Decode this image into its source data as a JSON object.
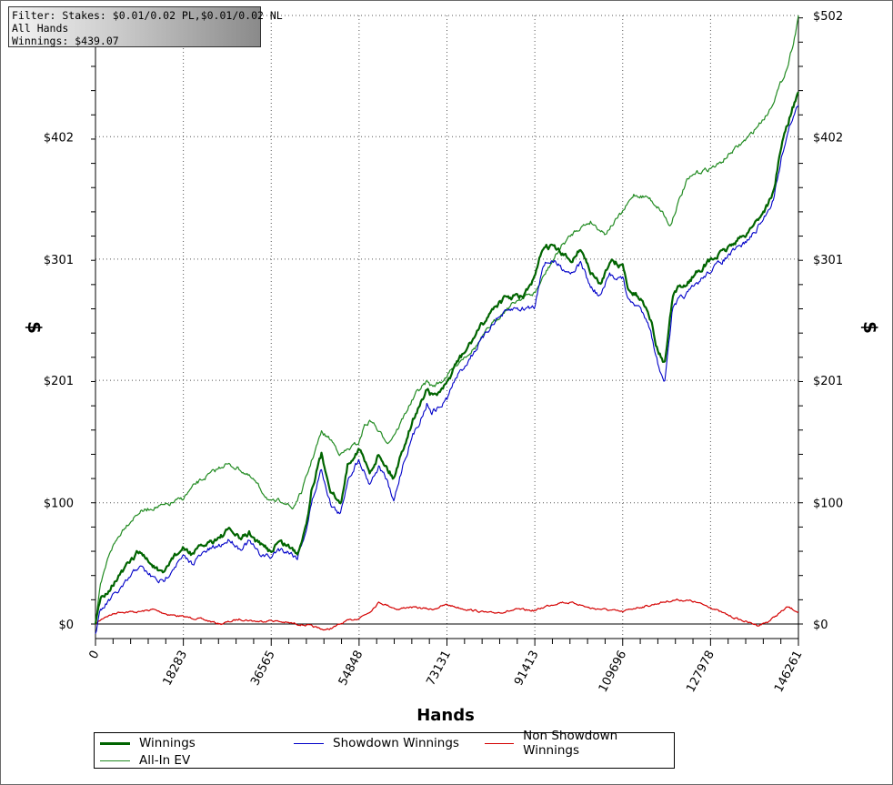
{
  "filter_box": {
    "line1": "Filter: Stakes: $0.01/0.02 PL,$0.01/0.02 NL",
    "line2": "All Hands",
    "line3": "Winnings: $439.07"
  },
  "colors": {
    "winnings": "#006400",
    "all_in_ev": "#228b22",
    "showdown": "#0000c8",
    "non_showdown": "#d40000",
    "grid": "#555555"
  },
  "chart_data": {
    "type": "line",
    "xlabel": "Hands",
    "ylabel": "$",
    "xlim": [
      0,
      146261
    ],
    "ylim": [
      -12,
      502
    ],
    "x_ticks": [
      "0",
      "18283",
      "36565",
      "54848",
      "73131",
      "91413",
      "109696",
      "127978",
      "146261"
    ],
    "x_tick_values": [
      0,
      18283,
      36565,
      54848,
      73131,
      91413,
      109696,
      127978,
      146261
    ],
    "y_ticks": [
      "$0",
      "$100",
      "$201",
      "$301",
      "$402",
      "$502"
    ],
    "y_tick_values": [
      0,
      100,
      201,
      301,
      402,
      502
    ],
    "grid": true,
    "legend_position": "bottom",
    "series": [
      {
        "name": "Winnings",
        "x": [
          0,
          1000,
          3000,
          6000,
          9000,
          12000,
          14000,
          16000,
          18283,
          20000,
          23000,
          26000,
          28000,
          30000,
          32000,
          34000,
          36565,
          38000,
          40000,
          42000,
          44000,
          45000,
          47000,
          49000,
          51000,
          52500,
          54848,
          57000,
          59000,
          60500,
          62000,
          64000,
          66000,
          68000,
          69000,
          70000,
          72000,
          73131,
          75000,
          77000,
          79000,
          81000,
          83000,
          85000,
          87000,
          89000,
          91413,
          93000,
          95000,
          97000,
          99000,
          101000,
          103000,
          105000,
          107000,
          109696,
          111000,
          113000,
          115000,
          117000,
          118500,
          120000,
          121500,
          123000,
          125000,
          127978,
          130000,
          133000,
          135000,
          137000,
          139000,
          141000,
          143000,
          145000,
          146261
        ],
        "values": [
          0,
          20,
          30,
          45,
          60,
          48,
          40,
          55,
          62,
          58,
          66,
          72,
          78,
          70,
          75,
          66,
          60,
          68,
          65,
          58,
          85,
          112,
          140,
          110,
          98,
          132,
          145,
          125,
          140,
          130,
          120,
          145,
          168,
          185,
          195,
          188,
          192,
          198,
          215,
          225,
          238,
          250,
          262,
          268,
          270,
          270,
          285,
          310,
          312,
          305,
          300,
          310,
          290,
          280,
          300,
          295,
          275,
          270,
          260,
          225,
          215,
          268,
          278,
          280,
          290,
          300,
          305,
          315,
          320,
          330,
          340,
          355,
          400,
          425,
          439
        ]
      },
      {
        "name": "All-In EV",
        "x": [
          0,
          1000,
          3000,
          6000,
          9000,
          12000,
          15000,
          18283,
          21000,
          24000,
          27000,
          30000,
          33000,
          36565,
          39000,
          41000,
          43000,
          45000,
          47000,
          49000,
          51000,
          53000,
          54848,
          56000,
          57500,
          59000,
          61000,
          63000,
          65000,
          67000,
          69000,
          70000,
          72000,
          73131,
          76000,
          79000,
          82000,
          85000,
          88000,
          91413,
          94000,
          97000,
          100000,
          103000,
          106000,
          109696,
          112000,
          115000,
          118000,
          119500,
          121000,
          123000,
          125000,
          127978,
          130000,
          132000,
          134000,
          136000,
          138000,
          140000,
          142000,
          144000,
          145500,
          146261
        ],
        "values": [
          0,
          30,
          60,
          80,
          92,
          96,
          98,
          104,
          116,
          124,
          132,
          128,
          118,
          100,
          102,
          95,
          110,
          135,
          158,
          152,
          140,
          145,
          150,
          164,
          168,
          158,
          150,
          162,
          178,
          192,
          200,
          196,
          200,
          205,
          218,
          228,
          245,
          258,
          268,
          273,
          292,
          312,
          325,
          332,
          322,
          340,
          354,
          352,
          340,
          328,
          345,
          365,
          372,
          376,
          380,
          388,
          395,
          402,
          412,
          422,
          440,
          460,
          485,
          502
        ]
      },
      {
        "name": "Showdown Winnings",
        "x": [
          0,
          1000,
          3000,
          6000,
          9000,
          12000,
          14000,
          16000,
          18283,
          20000,
          23000,
          26000,
          28000,
          30000,
          32000,
          34000,
          36565,
          38000,
          40000,
          42000,
          44000,
          45000,
          47000,
          49000,
          51000,
          52500,
          54848,
          57000,
          59000,
          60500,
          62000,
          64000,
          66000,
          68000,
          69000,
          70000,
          72000,
          73131,
          75000,
          77000,
          79000,
          81000,
          83000,
          85000,
          87000,
          89000,
          91413,
          93000,
          95000,
          97000,
          99000,
          101000,
          103000,
          105000,
          107000,
          109696,
          111000,
          113000,
          115000,
          117000,
          118500,
          120000,
          121500,
          123000,
          125000,
          127978,
          130000,
          133000,
          135000,
          137000,
          139000,
          141000,
          143000,
          145000,
          146261
        ],
        "values": [
          -8,
          10,
          20,
          32,
          48,
          38,
          34,
          46,
          55,
          50,
          60,
          65,
          70,
          62,
          68,
          58,
          55,
          62,
          60,
          55,
          80,
          100,
          128,
          98,
          90,
          120,
          136,
          116,
          130,
          120,
          100,
          132,
          155,
          172,
          182,
          175,
          180,
          186,
          203,
          214,
          226,
          238,
          250,
          256,
          260,
          260,
          262,
          296,
          300,
          294,
          290,
          298,
          278,
          270,
          288,
          285,
          266,
          262,
          250,
          215,
          200,
          258,
          268,
          272,
          280,
          292,
          298,
          308,
          314,
          322,
          334,
          350,
          390,
          418,
          428
        ]
      },
      {
        "name": "Non Showdown Winnings",
        "x": [
          0,
          2000,
          5000,
          9000,
          12000,
          15000,
          18283,
          22000,
          26000,
          30000,
          34000,
          36565,
          40000,
          44000,
          46000,
          48000,
          50000,
          52000,
          54848,
          57000,
          59000,
          61000,
          63000,
          65000,
          68000,
          70000,
          73131,
          76000,
          79000,
          82000,
          85000,
          88000,
          91413,
          94000,
          97000,
          100000,
          103000,
          106000,
          109696,
          112000,
          115000,
          118000,
          121000,
          124000,
          127978,
          130000,
          133000,
          136000,
          138000,
          140000,
          142000,
          144000,
          146261
        ],
        "values": [
          0,
          6,
          10,
          10,
          12,
          8,
          6,
          4,
          0,
          4,
          2,
          3,
          1,
          -1,
          -3,
          -5,
          -2,
          2,
          5,
          10,
          18,
          15,
          12,
          14,
          13,
          12,
          16,
          13,
          11,
          9,
          10,
          12,
          11,
          15,
          18,
          17,
          13,
          12,
          10,
          13,
          15,
          18,
          20,
          19,
          14,
          10,
          5,
          1,
          -1,
          2,
          8,
          14,
          10
        ]
      }
    ]
  },
  "legend": {
    "winnings": "Winnings",
    "showdown": "Showdown Winnings",
    "non_showdown": "Non Showdown Winnings",
    "all_in_ev": "All-In EV"
  }
}
